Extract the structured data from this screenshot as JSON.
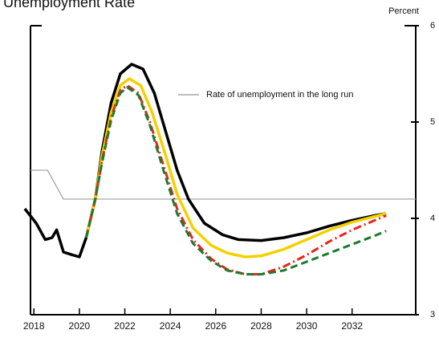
{
  "chart_data": {
    "type": "line",
    "title": "Unemployment Rate",
    "y_label": "Percent",
    "annotation": "Rate of unemployment in the long run",
    "xlim": [
      2017.85,
      2034.8
    ],
    "xticks": [
      2018,
      2020,
      2022,
      2024,
      2026,
      2028,
      2030,
      2032
    ],
    "ylim": [
      3,
      6
    ],
    "yticks": [
      3,
      4,
      5,
      6
    ],
    "series": [
      {
        "name": "Rate of unemployment in the long run",
        "color": "#a6a6a6",
        "style": "solid",
        "x": [
          2017.85,
          2018.6,
          2019.3,
          2034.8
        ],
        "values": [
          4.5,
          4.5,
          4.2,
          4.2
        ]
      },
      {
        "color": "#000000",
        "style": "solid",
        "x": [
          2017.6,
          2018.1,
          2018.5,
          2018.8,
          2019.0,
          2019.3,
          2019.7,
          2020.0,
          2020.3,
          2020.7,
          2021.0,
          2021.4,
          2021.8,
          2022.3,
          2022.8,
          2023.3,
          2023.8,
          2024.3,
          2024.8,
          2025.5,
          2026.3,
          2027.0,
          2028.0,
          2029.0,
          2030.0,
          2031.0,
          2032.0,
          2033.0,
          2033.5
        ],
        "values": [
          4.1,
          3.95,
          3.78,
          3.8,
          3.88,
          3.65,
          3.62,
          3.6,
          3.8,
          4.2,
          4.7,
          5.2,
          5.5,
          5.6,
          5.55,
          5.3,
          4.9,
          4.5,
          4.2,
          3.95,
          3.83,
          3.78,
          3.77,
          3.8,
          3.85,
          3.92,
          3.98,
          4.03,
          4.05
        ]
      },
      {
        "color": "#f5d000",
        "style": "solid",
        "x": [
          2020.3,
          2020.7,
          2021.0,
          2021.4,
          2021.8,
          2022.2,
          2022.7,
          2023.2,
          2023.8,
          2024.3,
          2025.0,
          2025.8,
          2026.5,
          2027.3,
          2028.0,
          2029.0,
          2030.0,
          2031.0,
          2032.0,
          2033.0,
          2033.5
        ],
        "values": [
          3.8,
          4.2,
          4.65,
          5.1,
          5.38,
          5.45,
          5.38,
          5.1,
          4.65,
          4.25,
          3.9,
          3.72,
          3.64,
          3.6,
          3.61,
          3.68,
          3.78,
          3.88,
          3.96,
          4.02,
          4.05
        ]
      },
      {
        "color": "#e8251c",
        "style": "dashdot",
        "x": [
          2020.3,
          2020.7,
          2021.0,
          2021.4,
          2021.8,
          2022.1,
          2022.6,
          2023.1,
          2023.7,
          2024.3,
          2025.0,
          2025.8,
          2026.5,
          2027.3,
          2028.0,
          2029.0,
          2030.0,
          2031.0,
          2032.0,
          2033.0,
          2033.5
        ],
        "values": [
          3.8,
          4.2,
          4.6,
          5.05,
          5.33,
          5.38,
          5.3,
          5.0,
          4.55,
          4.1,
          3.78,
          3.58,
          3.47,
          3.42,
          3.42,
          3.5,
          3.62,
          3.76,
          3.88,
          3.98,
          4.03
        ]
      },
      {
        "color": "#1f7a2e",
        "style": "dashed",
        "x": [
          2020.3,
          2020.7,
          2021.0,
          2021.4,
          2021.8,
          2022.1,
          2022.6,
          2023.1,
          2023.7,
          2024.3,
          2025.0,
          2025.8,
          2026.5,
          2027.3,
          2028.0,
          2029.0,
          2030.0,
          2031.0,
          2032.0,
          2033.0,
          2033.5
        ],
        "values": [
          3.8,
          4.2,
          4.58,
          5.02,
          5.3,
          5.36,
          5.28,
          4.97,
          4.5,
          4.05,
          3.74,
          3.56,
          3.46,
          3.42,
          3.42,
          3.46,
          3.55,
          3.64,
          3.73,
          3.82,
          3.87
        ]
      }
    ]
  }
}
